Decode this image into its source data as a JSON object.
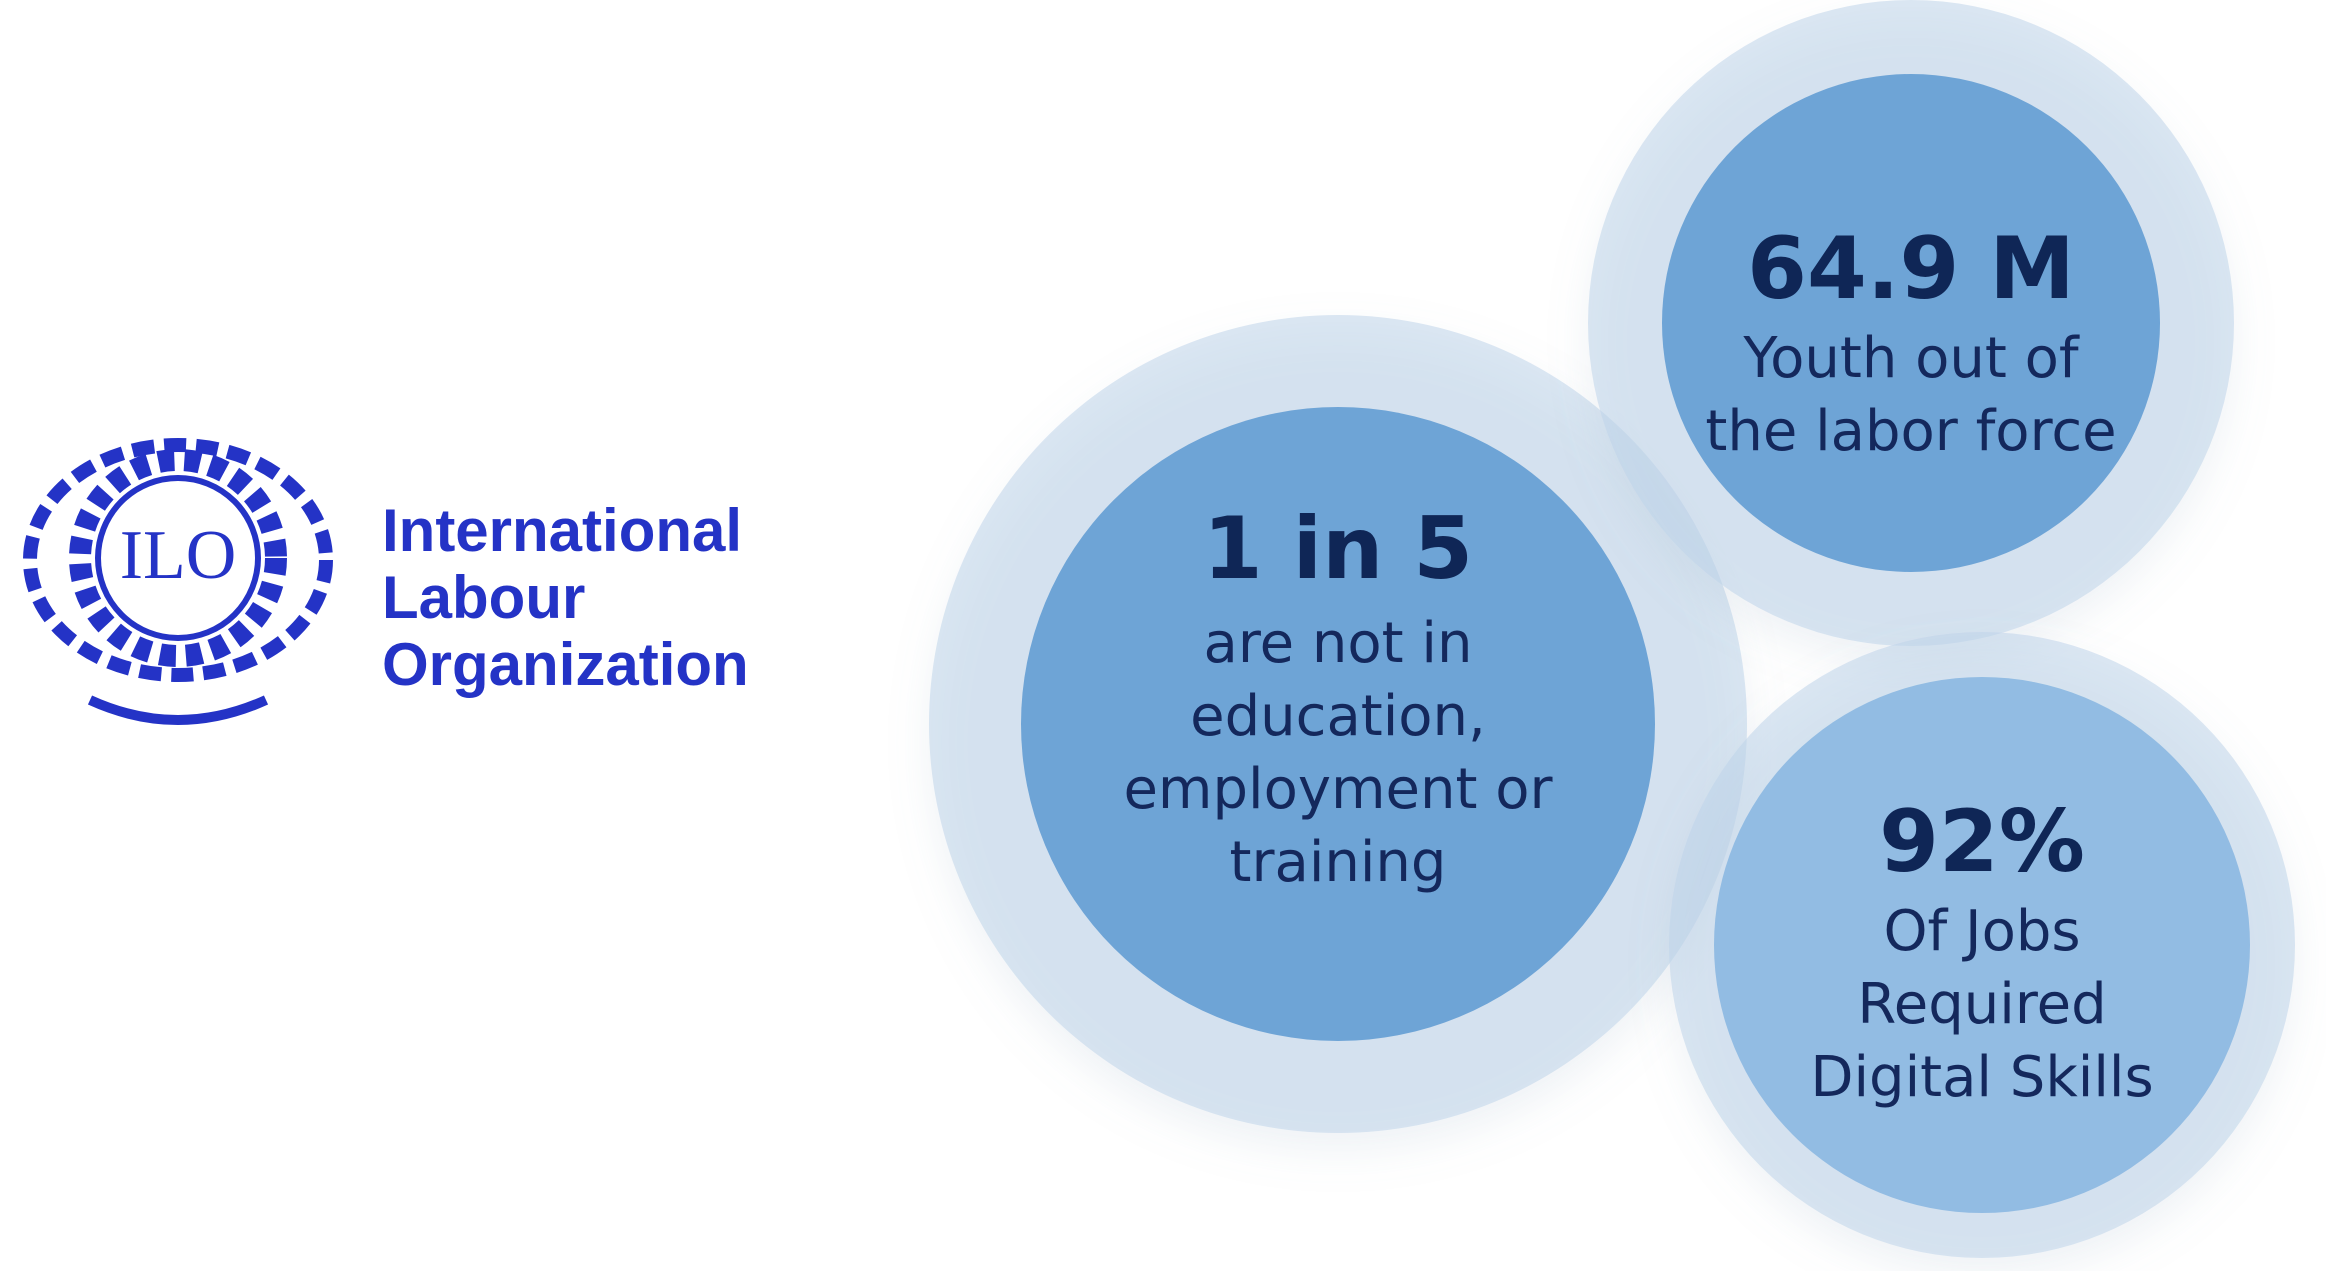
{
  "logo": {
    "emblem": "ILO",
    "name_lines": [
      "International",
      "Labour",
      "Organization"
    ]
  },
  "stats": [
    {
      "headline": "1 in 5",
      "lines": [
        "are not in",
        "education,",
        "employment or",
        "training"
      ]
    },
    {
      "headline": "64.9 M",
      "lines": [
        "Youth out of",
        "the labor force"
      ]
    },
    {
      "headline": "92%",
      "lines": [
        "Of Jobs",
        "Required",
        "Digital Skills"
      ]
    }
  ]
}
